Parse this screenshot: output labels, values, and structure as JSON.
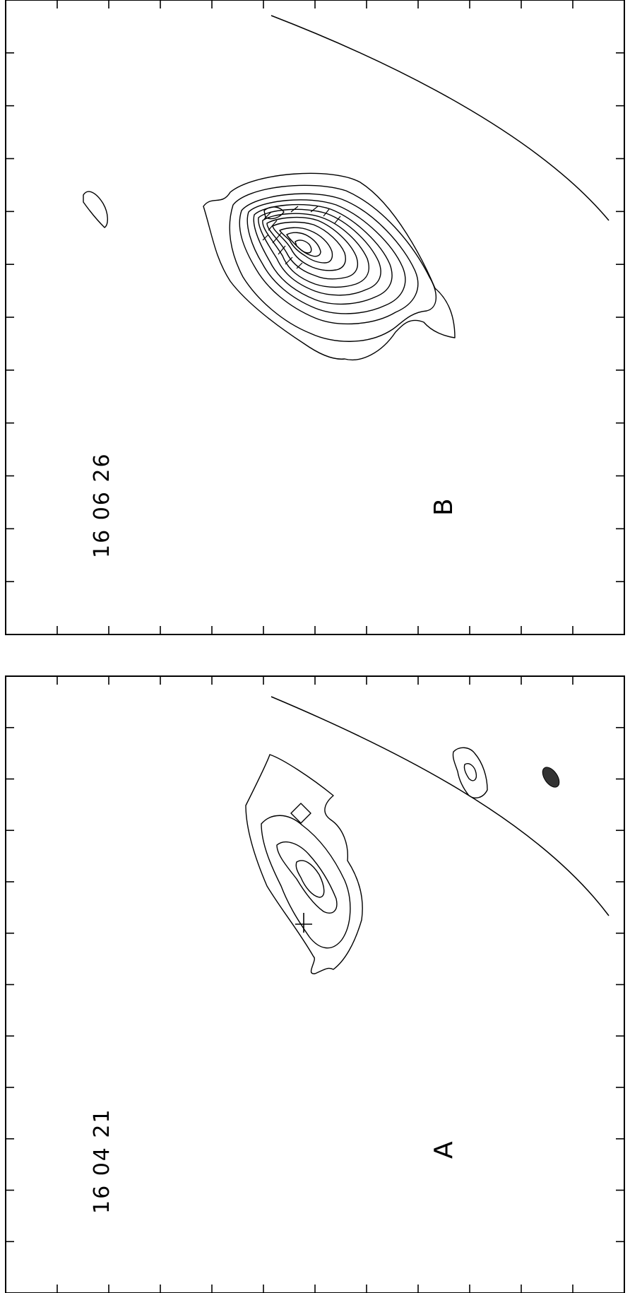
{
  "panels": [
    {
      "id": "B",
      "label": "B",
      "time": "16 06 26"
    },
    {
      "id": "A",
      "label": "A",
      "time": "16 04 21"
    }
  ]
}
